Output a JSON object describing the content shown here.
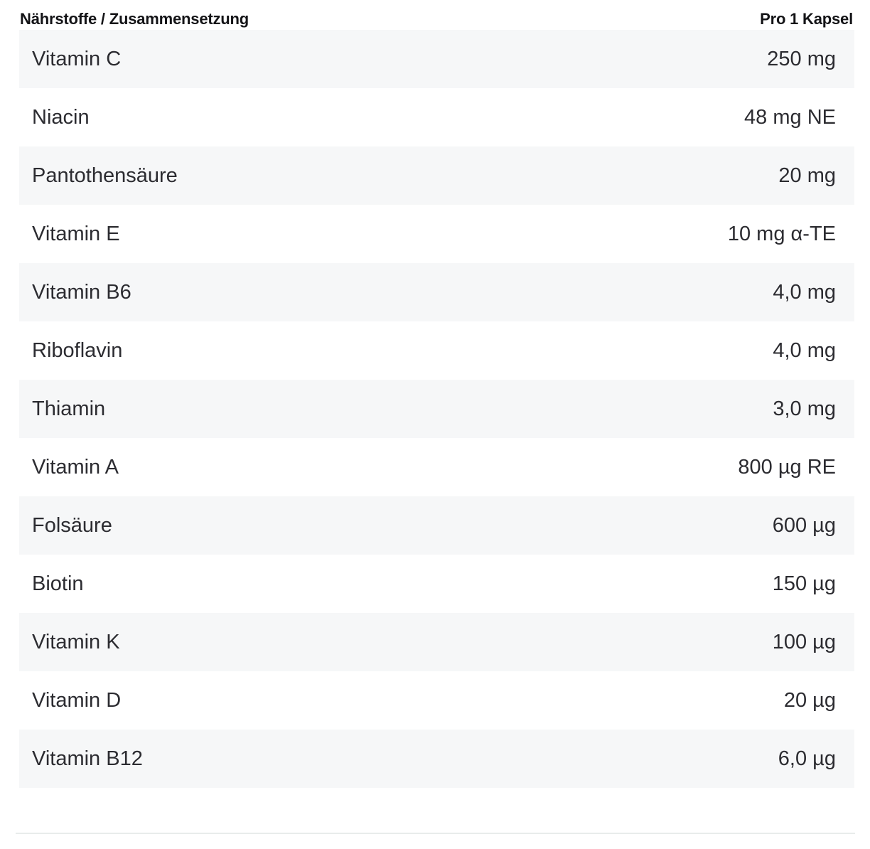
{
  "table": {
    "header": {
      "nutrients_label": "Nährstoffe / Zusammensetzung",
      "per_capsule_label": "Pro 1 Kapsel"
    },
    "rows": [
      {
        "label": "Vitamin C",
        "value": "250 mg"
      },
      {
        "label": "Niacin",
        "value": "48 mg NE"
      },
      {
        "label": "Pantothensäure",
        "value": "20 mg"
      },
      {
        "label": "Vitamin E",
        "value": "10 mg α-TE"
      },
      {
        "label": "Vitamin B6",
        "value": "4,0 mg"
      },
      {
        "label": "Riboflavin",
        "value": "4,0 mg"
      },
      {
        "label": "Thiamin",
        "value": "3,0 mg"
      },
      {
        "label": "Vitamin A",
        "value": "800 µg RE"
      },
      {
        "label": "Folsäure",
        "value": "600 µg"
      },
      {
        "label": "Biotin",
        "value": "150 µg"
      },
      {
        "label": "Vitamin K",
        "value": "100 µg"
      },
      {
        "label": "Vitamin D",
        "value": "20 µg"
      },
      {
        "label": "Vitamin B12",
        "value": "6,0 µg"
      }
    ],
    "colors": {
      "row_alt_bg": "#f6f7f8",
      "row_text": "#2c2c31",
      "header_text": "#141417",
      "divider": "#e8eceb"
    }
  }
}
